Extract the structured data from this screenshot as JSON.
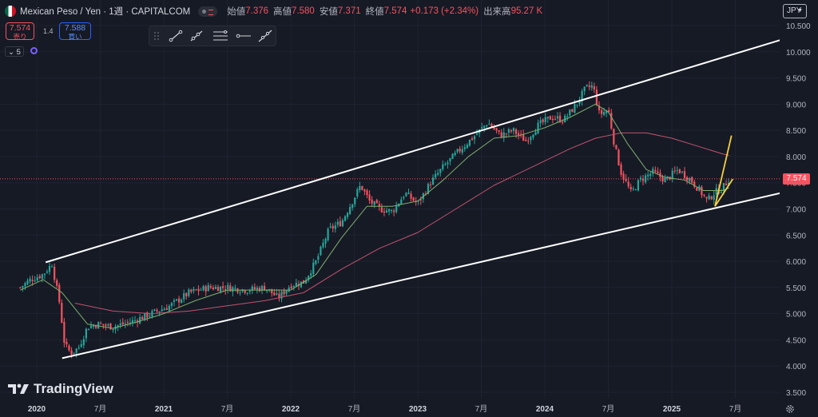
{
  "header": {
    "symbol": "Mexican Peso / Yen · 1週 · CAPITALCOM",
    "open_label": "始値",
    "open": "7.376",
    "high_label": "高値",
    "high": "7.580",
    "low_label": "安値",
    "low": "7.371",
    "close_label": "終値",
    "close": "7.574",
    "change": "+0.173 (+2.34%)",
    "volume_label": "出来高",
    "volume": "95.27 K"
  },
  "trade": {
    "sell_price": "7.574",
    "sell_label": "売り",
    "spread": "1.4",
    "buy_price": "7.588",
    "buy_label": "買い"
  },
  "indicator_count": "5",
  "currency": "JPY",
  "last_price_label": "7.574",
  "brand": "TradingView",
  "colors": {
    "background": "#161a25",
    "up": "#26a69a",
    "down": "#f7525f",
    "ma_short": "#7fae6f",
    "ma_long": "#c2536e",
    "channel": "#ffffff",
    "trend": "#f5d041"
  },
  "chart_data": {
    "type": "candlestick",
    "timeframe": "1W",
    "ylim": [
      3.5,
      10.5
    ],
    "y_ticks": [
      "10.500",
      "10.000",
      "9.500",
      "9.000",
      "8.500",
      "8.000",
      "7.500",
      "7.000",
      "6.500",
      "6.000",
      "5.500",
      "5.000",
      "4.500",
      "4.000",
      "3.500"
    ],
    "x_ticks": [
      {
        "label": "2020",
        "t": 2020.0
      },
      {
        "label": "7月",
        "t": 2020.5
      },
      {
        "label": "2021",
        "t": 2021.0
      },
      {
        "label": "7月",
        "t": 2021.5
      },
      {
        "label": "2022",
        "t": 2022.0
      },
      {
        "label": "7月",
        "t": 2022.5
      },
      {
        "label": "2023",
        "t": 2023.0
      },
      {
        "label": "7月",
        "t": 2023.5
      },
      {
        "label": "2024",
        "t": 2024.0
      },
      {
        "label": "7月",
        "t": 2024.5
      },
      {
        "label": "2025",
        "t": 2025.0
      },
      {
        "label": "7月",
        "t": 2025.5
      }
    ],
    "last_price": 7.574,
    "price_path": [
      [
        2019.87,
        5.5
      ],
      [
        2019.95,
        5.65
      ],
      [
        2020.05,
        5.75
      ],
      [
        2020.12,
        5.95
      ],
      [
        2020.18,
        5.2
      ],
      [
        2020.22,
        4.4
      ],
      [
        2020.27,
        4.25
      ],
      [
        2020.33,
        4.35
      ],
      [
        2020.4,
        4.75
      ],
      [
        2020.48,
        4.8
      ],
      [
        2020.6,
        4.75
      ],
      [
        2020.75,
        4.85
      ],
      [
        2020.9,
        5.0
      ],
      [
        2021.05,
        5.15
      ],
      [
        2021.2,
        5.4
      ],
      [
        2021.35,
        5.5
      ],
      [
        2021.5,
        5.5
      ],
      [
        2021.65,
        5.45
      ],
      [
        2021.8,
        5.5
      ],
      [
        2021.9,
        5.3
      ],
      [
        2022.0,
        5.55
      ],
      [
        2022.1,
        5.6
      ],
      [
        2022.2,
        6.0
      ],
      [
        2022.3,
        6.6
      ],
      [
        2022.4,
        6.75
      ],
      [
        2022.55,
        7.45
      ],
      [
        2022.62,
        7.15
      ],
      [
        2022.7,
        7.0
      ],
      [
        2022.8,
        6.95
      ],
      [
        2022.9,
        7.3
      ],
      [
        2023.0,
        7.1
      ],
      [
        2023.1,
        7.5
      ],
      [
        2023.2,
        7.8
      ],
      [
        2023.32,
        8.1
      ],
      [
        2023.45,
        8.4
      ],
      [
        2023.55,
        8.65
      ],
      [
        2023.65,
        8.4
      ],
      [
        2023.75,
        8.5
      ],
      [
        2023.85,
        8.3
      ],
      [
        2023.95,
        8.6
      ],
      [
        2024.05,
        8.75
      ],
      [
        2024.15,
        8.7
      ],
      [
        2024.25,
        9.0
      ],
      [
        2024.32,
        9.3
      ],
      [
        2024.38,
        9.35
      ],
      [
        2024.43,
        8.8
      ],
      [
        2024.5,
        8.9
      ],
      [
        2024.55,
        8.2
      ],
      [
        2024.6,
        7.7
      ],
      [
        2024.68,
        7.3
      ],
      [
        2024.75,
        7.55
      ],
      [
        2024.85,
        7.7
      ],
      [
        2024.95,
        7.55
      ],
      [
        2025.05,
        7.75
      ],
      [
        2025.15,
        7.55
      ],
      [
        2025.22,
        7.35
      ],
      [
        2025.28,
        7.15
      ],
      [
        2025.33,
        7.3
      ],
      [
        2025.4,
        7.4
      ],
      [
        2025.45,
        7.574
      ]
    ],
    "ma_short": [
      [
        2019.87,
        5.45
      ],
      [
        2020.05,
        5.65
      ],
      [
        2020.2,
        5.4
      ],
      [
        2020.4,
        4.8
      ],
      [
        2020.6,
        4.72
      ],
      [
        2020.8,
        4.85
      ],
      [
        2021.0,
        5.0
      ],
      [
        2021.25,
        5.25
      ],
      [
        2021.5,
        5.45
      ],
      [
        2021.75,
        5.45
      ],
      [
        2022.0,
        5.45
      ],
      [
        2022.2,
        5.75
      ],
      [
        2022.4,
        6.45
      ],
      [
        2022.6,
        7.05
      ],
      [
        2022.8,
        7.05
      ],
      [
        2023.0,
        7.15
      ],
      [
        2023.2,
        7.55
      ],
      [
        2023.4,
        8.0
      ],
      [
        2023.6,
        8.35
      ],
      [
        2023.8,
        8.4
      ],
      [
        2024.0,
        8.55
      ],
      [
        2024.2,
        8.75
      ],
      [
        2024.4,
        9.0
      ],
      [
        2024.5,
        8.85
      ],
      [
        2024.65,
        8.25
      ],
      [
        2024.8,
        7.75
      ],
      [
        2024.95,
        7.6
      ],
      [
        2025.1,
        7.55
      ],
      [
        2025.25,
        7.35
      ],
      [
        2025.4,
        7.35
      ],
      [
        2025.45,
        7.4
      ]
    ],
    "ma_long": [
      [
        2020.3,
        5.2
      ],
      [
        2020.6,
        5.05
      ],
      [
        2020.9,
        5.0
      ],
      [
        2021.2,
        5.05
      ],
      [
        2021.5,
        5.15
      ],
      [
        2021.8,
        5.25
      ],
      [
        2022.1,
        5.4
      ],
      [
        2022.4,
        5.85
      ],
      [
        2022.7,
        6.25
      ],
      [
        2023.0,
        6.55
      ],
      [
        2023.3,
        7.0
      ],
      [
        2023.6,
        7.45
      ],
      [
        2023.9,
        7.8
      ],
      [
        2024.2,
        8.15
      ],
      [
        2024.4,
        8.35
      ],
      [
        2024.6,
        8.45
      ],
      [
        2024.8,
        8.45
      ],
      [
        2025.0,
        8.35
      ],
      [
        2025.2,
        8.2
      ],
      [
        2025.4,
        8.05
      ],
      [
        2025.45,
        8.02
      ]
    ],
    "channel_upper": [
      [
        2020.07,
        5.98
      ],
      [
        2026.3,
        10.55
      ]
    ],
    "channel_lower": [
      [
        2020.2,
        4.15
      ],
      [
        2026.3,
        7.55
      ]
    ],
    "trend_lines": [
      [
        [
          2025.34,
          7.05
        ],
        [
          2025.47,
          8.4
        ]
      ],
      [
        [
          2025.34,
          7.05
        ],
        [
          2025.48,
          7.57
        ]
      ]
    ]
  }
}
